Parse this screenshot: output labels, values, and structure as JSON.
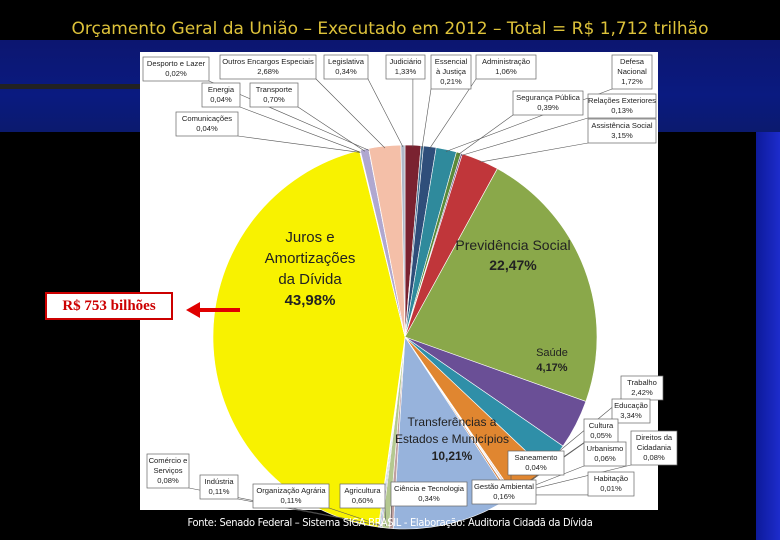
{
  "title": "Orçamento Geral da União – Executado em 2012 – Total = R$ 1,712  trilhão",
  "callout": "R$ 753 bilhões",
  "source": "Fonte: Senado Federal – Sistema SIGA BRASIL - Elaboração: Auditoria Cidadã da Dívida",
  "chart_data": {
    "type": "pie",
    "start_angle": "12 o'clock",
    "direction": "clockwise",
    "slices": [
      {
        "label": "Judiciário",
        "value": 1.33,
        "value_label": "1,33%",
        "color": "#7a2230"
      },
      {
        "label": "Essencial à Justiça",
        "value": 0.21,
        "value_label": "0,21%",
        "color": "#3b6a8c"
      },
      {
        "label": "Administração",
        "value": 1.06,
        "value_label": "1,06%",
        "color": "#2f4e7a"
      },
      {
        "label": "Defesa Nacional",
        "value": 1.72,
        "value_label": "1,72%",
        "color": "#2f8a9c"
      },
      {
        "label": "Segurança Pública",
        "value": 0.39,
        "value_label": "0,39%",
        "color": "#5a8a3a"
      },
      {
        "label": "Relações Exteriores",
        "value": 0.13,
        "value_label": "0,13%",
        "color": "#6a4a8a"
      },
      {
        "label": "Assistência Social",
        "value": 3.15,
        "value_label": "3,15%",
        "color": "#c0363a"
      },
      {
        "label": "Previdência Social",
        "value": 22.47,
        "value_label": "22,47%",
        "color": "#8aa84a"
      },
      {
        "label": "Saúde",
        "value": 4.17,
        "value_label": "4,17%",
        "color": "#6a4f96"
      },
      {
        "label": "Trabalho",
        "value": 2.42,
        "value_label": "2,42%",
        "color": "#2f8fa8"
      },
      {
        "label": "Educação",
        "value": 3.34,
        "value_label": "3,34%",
        "color": "#e08630"
      },
      {
        "label": "Cultura",
        "value": 0.05,
        "value_label": "0,05%",
        "color": "#3d5f8a"
      },
      {
        "label": "Direitos da Cidadania",
        "value": 0.08,
        "value_label": "0,08%",
        "color": "#9a3a3a"
      },
      {
        "label": "Urbanismo",
        "value": 0.06,
        "value_label": "0,06%",
        "color": "#7a9a4a"
      },
      {
        "label": "Saneamento",
        "value": 0.04,
        "value_label": "0,04%",
        "color": "#5a4a7a"
      },
      {
        "label": "Habitação",
        "value": 0.01,
        "value_label": "0,01%",
        "color": "#3a8a9a"
      },
      {
        "label": "Gestão Ambiental",
        "value": 0.16,
        "value_label": "0,16%",
        "color": "#d07a3a"
      },
      {
        "label": "Transferências a Estados e Municípios",
        "value": 10.21,
        "value_label": "10,21%",
        "color": "#97b3dc"
      },
      {
        "label": "Ciência e Tecnologia",
        "value": 0.34,
        "value_label": "0,34%",
        "color": "#c0a0a0"
      },
      {
        "label": "Agricultura",
        "value": 0.6,
        "value_label": "0,60%",
        "color": "#b4c890"
      },
      {
        "label": "Organização Agrária",
        "value": 0.11,
        "value_label": "0,11%",
        "color": "#a090c0"
      },
      {
        "label": "Indústria",
        "value": 0.11,
        "value_label": "0,11%",
        "color": "#80b8cc"
      },
      {
        "label": "Comércio e Serviços",
        "value": 0.08,
        "value_label": "0,08%",
        "color": "#e0a070"
      },
      {
        "label": "Juros e Amortizações da Dívida",
        "value": 43.98,
        "value_label": "43,98%",
        "color": "#f8f200"
      },
      {
        "label": "Comunicações",
        "value": 0.04,
        "value_label": "0,04%",
        "color": "#a8b8d8"
      },
      {
        "label": "Energia",
        "value": 0.04,
        "value_label": "0,04%",
        "color": "#c0d0a0"
      },
      {
        "label": "Transporte",
        "value": 0.7,
        "value_label": "0,70%",
        "color": "#b0a8d0"
      },
      {
        "label": "Desporto e Lazer",
        "value": 0.02,
        "value_label": "0,02%",
        "color": "#a0d0e0"
      },
      {
        "label": "Outros Encargos Especiais",
        "value": 2.68,
        "value_label": "2,68%",
        "color": "#f4bfa8"
      },
      {
        "label": "Legislativa",
        "value": 0.34,
        "value_label": "0,34%",
        "color": "#b0b8c8"
      }
    ],
    "inside_labels": [
      {
        "slice": "Juros e Amortizações da Dívida",
        "lines": [
          "Juros e",
          "Amortizações",
          "da Dívida",
          "43,98%"
        ]
      },
      {
        "slice": "Previdência Social",
        "lines": [
          "Previdência Social",
          "22,47%"
        ]
      },
      {
        "slice": "Saúde",
        "lines": [
          "Saúde",
          "4,17%"
        ]
      },
      {
        "slice": "Transferências a Estados e Municípios",
        "lines": [
          "Transferências a",
          "Estados e Municípios",
          "10,21%"
        ]
      }
    ],
    "callouts": [
      {
        "slice": "Desporto e Lazer",
        "lines": [
          "Desporto e Lazer",
          "0,02%"
        ]
      },
      {
        "slice": "Outros Encargos Especiais",
        "lines": [
          "Outros Encargos Especiais",
          "2,68%"
        ]
      },
      {
        "slice": "Legislativa",
        "lines": [
          "Legislativa",
          "0,34%"
        ]
      },
      {
        "slice": "Judiciário",
        "lines": [
          "Judiciário",
          "1,33%"
        ]
      },
      {
        "slice": "Essencial à Justiça",
        "lines": [
          "Essencial",
          "à Justiça",
          "0,21%"
        ]
      },
      {
        "slice": "Administração",
        "lines": [
          "Administração",
          "1,06%"
        ]
      },
      {
        "slice": "Defesa Nacional",
        "lines": [
          "Defesa",
          "Nacional",
          "1,72%"
        ]
      },
      {
        "slice": "Energia",
        "lines": [
          "Energia",
          "0,04%"
        ]
      },
      {
        "slice": "Transporte",
        "lines": [
          "Transporte",
          "0,70%"
        ]
      },
      {
        "slice": "Segurança Pública",
        "lines": [
          "Segurança Pública",
          "0,39%"
        ]
      },
      {
        "slice": "Relações Exteriores",
        "lines": [
          "Relações Exteriores",
          "0,13%"
        ]
      },
      {
        "slice": "Comunicações",
        "lines": [
          "Comunicações",
          "0,04%"
        ]
      },
      {
        "slice": "Assistência Social",
        "lines": [
          "Assistência Social",
          "3,15%"
        ]
      },
      {
        "slice": "Trabalho",
        "lines": [
          "Trabalho",
          "2,42%"
        ]
      },
      {
        "slice": "Educação",
        "lines": [
          "Educação",
          "3,34%"
        ]
      },
      {
        "slice": "Cultura",
        "lines": [
          "Cultura",
          "0,05%"
        ]
      },
      {
        "slice": "Direitos da Cidadania",
        "lines": [
          "Direitos da",
          "Cidadania",
          "0,08%"
        ]
      },
      {
        "slice": "Urbanismo",
        "lines": [
          "Urbanismo",
          "0,06%"
        ]
      },
      {
        "slice": "Saneamento",
        "lines": [
          "Saneamento",
          "0,04%"
        ]
      },
      {
        "slice": "Habitação",
        "lines": [
          "Habitação",
          "0,01%"
        ]
      },
      {
        "slice": "Comércio e Serviços",
        "lines": [
          "Comércio e",
          "Serviços",
          "0,08%"
        ]
      },
      {
        "slice": "Indústria",
        "lines": [
          "Indústria",
          "0,11%"
        ]
      },
      {
        "slice": "Organização Agrária",
        "lines": [
          "Organização Agrária",
          "0,11%"
        ]
      },
      {
        "slice": "Agricultura",
        "lines": [
          "Agricultura",
          "0,60%"
        ]
      },
      {
        "slice": "Ciência e Tecnologia",
        "lines": [
          "Ciência e Tecnologia",
          "0,34%"
        ]
      },
      {
        "slice": "Gestão Ambiental",
        "lines": [
          "Gestão Ambiental",
          "0,16%"
        ]
      }
    ]
  }
}
